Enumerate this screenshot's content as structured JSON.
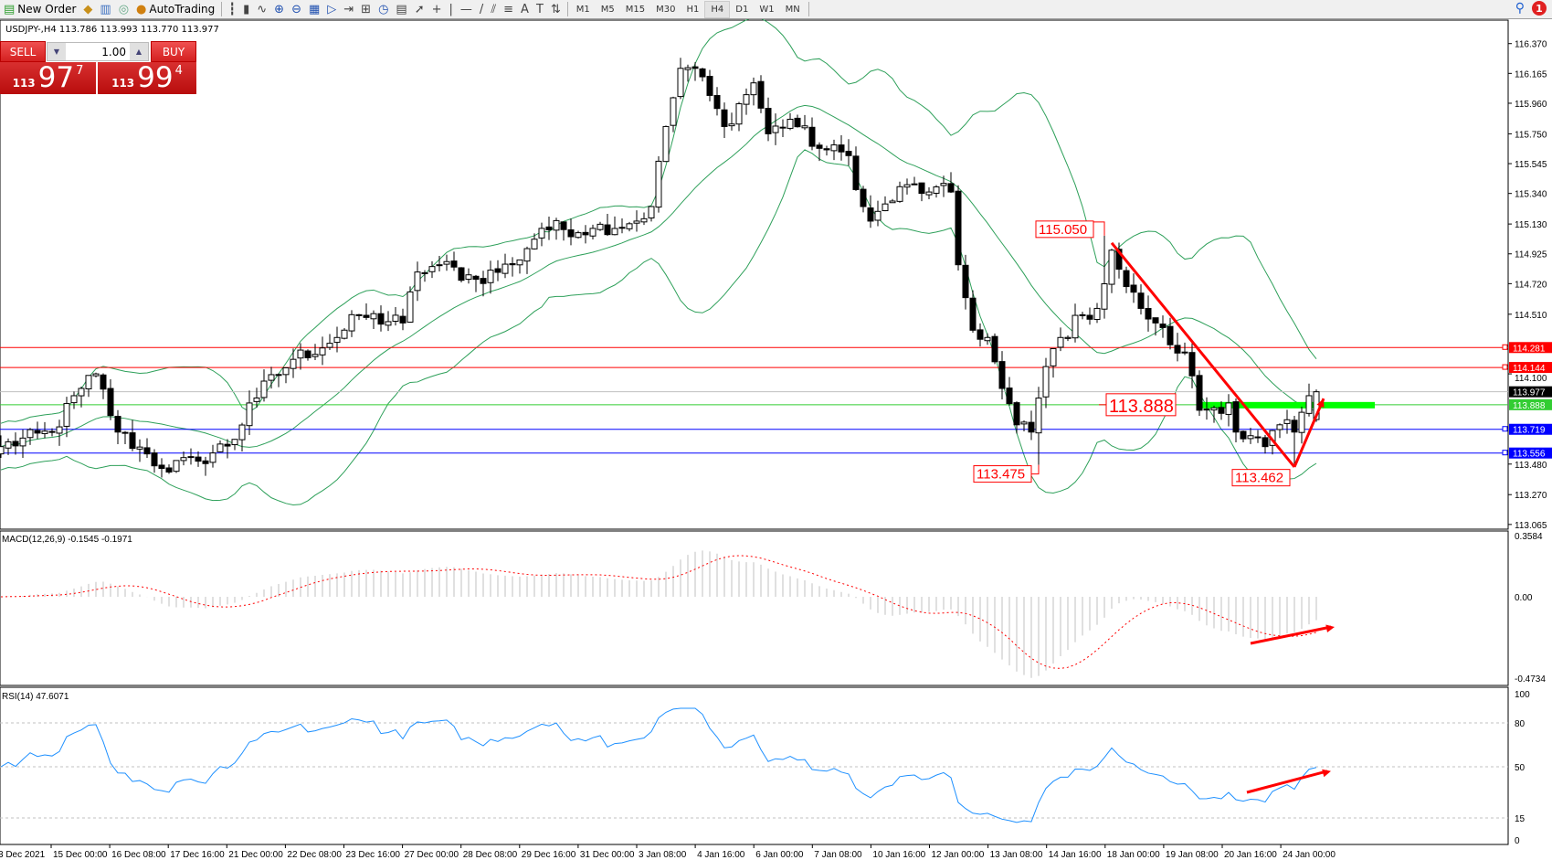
{
  "toolbar": {
    "items": [
      {
        "icon": "new-order-icon",
        "label": "New Order"
      },
      {
        "icon": "market-watch-icon",
        "label": ""
      },
      {
        "icon": "data-window-icon",
        "label": ""
      },
      {
        "icon": "signals-icon",
        "label": ""
      },
      {
        "icon": "autotrading-icon",
        "label": "AutoTrading"
      }
    ],
    "chart_tools": [
      "bar-chart-icon",
      "candlestick-icon",
      "line-chart-icon",
      "zoom-in-icon",
      "zoom-out-icon",
      "tile-windows-icon",
      "auto-scroll-icon",
      "chart-shift-icon",
      "indicators-icon",
      "periods-icon",
      "templates-icon",
      "cursor-icon",
      "crosshair-icon",
      "vertical-line-icon",
      "horizontal-line-icon",
      "trendline-icon",
      "equidistant-channel-icon",
      "fibonacci-icon",
      "text-icon",
      "text-label-icon",
      "arrows-icon"
    ],
    "timeframes": [
      "M1",
      "M5",
      "M15",
      "M30",
      "H1",
      "H4",
      "D1",
      "W1",
      "MN"
    ],
    "active_timeframe": "H4",
    "notification_count": "1"
  },
  "chart": {
    "header": "USDJPY-,H4  113.786 113.993 113.770 113.977",
    "symbol": "USDJPY-",
    "timeframe": "H4",
    "ohlc": {
      "open": 113.786,
      "high": 113.993,
      "low": 113.77,
      "close": 113.977
    }
  },
  "one_click": {
    "sell_label": "SELL",
    "buy_label": "BUY",
    "lot": "1.00",
    "sell_small": "113",
    "sell_big": "97",
    "sell_pip": "7",
    "buy_small": "113",
    "buy_big": "99",
    "buy_pip": "4"
  },
  "price_axis": {
    "ticks": [
      "116.370",
      "116.165",
      "115.960",
      "115.750",
      "115.545",
      "115.340",
      "115.130",
      "114.925",
      "114.720",
      "114.510",
      "114.100",
      "113.480",
      "113.270",
      "113.065"
    ]
  },
  "levels": [
    {
      "price": 114.281,
      "label": "114.281",
      "color": "#ff0000"
    },
    {
      "price": 114.144,
      "label": "114.144",
      "color": "#ff0000"
    },
    {
      "price": 113.977,
      "label": "113.977",
      "color": "#000000",
      "line": "#c0c0c0"
    },
    {
      "price": 113.888,
      "label": "113.888",
      "color": "#32cd32"
    },
    {
      "price": 113.719,
      "label": "113.719",
      "color": "#0000ff"
    },
    {
      "price": 113.556,
      "label": "113.556",
      "color": "#0000ff"
    }
  ],
  "annotations": [
    {
      "text": "115.050",
      "bar": 151,
      "price": 115.05,
      "size": "small"
    },
    {
      "text": "113.888",
      "bar": 150,
      "price": 113.888,
      "size": "large"
    },
    {
      "text": "113.475",
      "bar": 142,
      "price": 113.475,
      "size": "small"
    },
    {
      "text": "113.462",
      "bar": 177,
      "price": 113.462,
      "size": "small"
    }
  ],
  "trendline_points": [
    [
      152,
      115.0
    ],
    [
      177,
      113.46
    ],
    [
      181,
      113.93
    ]
  ],
  "support_zone": {
    "price": 113.888,
    "from_bar": 164,
    "to_bar": 188,
    "color": "#00ff00"
  },
  "close_anchors": [
    [
      0,
      113.6
    ],
    [
      7,
      113.7
    ],
    [
      11,
      114.0
    ],
    [
      13,
      114.1
    ],
    [
      16,
      113.7
    ],
    [
      20,
      113.55
    ],
    [
      22,
      113.45
    ],
    [
      27,
      113.5
    ],
    [
      32,
      113.65
    ],
    [
      34,
      113.9
    ],
    [
      40,
      114.2
    ],
    [
      46,
      114.35
    ],
    [
      49,
      114.5
    ],
    [
      55,
      114.45
    ],
    [
      57,
      114.8
    ],
    [
      60,
      114.85
    ],
    [
      65,
      114.75
    ],
    [
      70,
      114.85
    ],
    [
      74,
      115.1
    ],
    [
      81,
      115.1
    ],
    [
      87,
      115.15
    ],
    [
      89,
      115.25
    ],
    [
      91,
      115.8
    ],
    [
      93,
      116.2
    ],
    [
      95,
      116.2
    ],
    [
      99,
      115.8
    ],
    [
      103,
      116.1
    ],
    [
      105,
      115.75
    ],
    [
      108,
      115.85
    ],
    [
      112,
      115.65
    ],
    [
      116,
      115.6
    ],
    [
      118,
      115.25
    ],
    [
      119,
      115.15
    ],
    [
      124,
      115.4
    ],
    [
      127,
      115.35
    ],
    [
      130,
      115.35
    ],
    [
      131,
      114.85
    ],
    [
      133,
      114.4
    ],
    [
      135,
      114.35
    ],
    [
      137,
      114.0
    ],
    [
      139,
      113.75
    ],
    [
      141,
      113.7
    ],
    [
      143,
      114.15
    ],
    [
      145,
      114.35
    ],
    [
      148,
      114.5
    ],
    [
      150,
      114.55
    ],
    [
      152,
      114.95
    ],
    [
      154,
      114.7
    ],
    [
      156,
      114.55
    ],
    [
      158,
      114.45
    ],
    [
      160,
      114.3
    ],
    [
      162,
      114.25
    ],
    [
      164,
      113.85
    ],
    [
      168,
      113.9
    ],
    [
      169,
      113.7
    ],
    [
      173,
      113.6
    ],
    [
      175,
      113.75
    ],
    [
      177,
      113.7
    ],
    [
      179,
      113.95
    ],
    [
      180,
      113.977
    ]
  ],
  "bollinger": {
    "period": 20,
    "deviation": 2,
    "color": "#2ea05a"
  },
  "macd": {
    "label": "MACD(12,26,9) -0.1545 -0.1971",
    "max": "0.3584",
    "zero": "0.00",
    "min": "-0.4734",
    "arrow": [
      [
        171,
        -0.272
      ],
      [
        182.5,
        -0.176
      ]
    ]
  },
  "rsi": {
    "label": "RSI(14) 47.6071",
    "levels": [
      "100",
      "80",
      "50",
      "15",
      "0"
    ],
    "color": "#1e90ff",
    "arrow": [
      [
        170.5,
        32.5
      ],
      [
        182,
        47
      ]
    ]
  },
  "time_axis": [
    "3 Dec 2021",
    "15 Dec 00:00",
    "16 Dec 08:00",
    "17 Dec 16:00",
    "21 Dec 00:00",
    "22 Dec 08:00",
    "23 Dec 16:00",
    "27 Dec 00:00",
    "28 Dec 08:00",
    "29 Dec 16:00",
    "31 Dec 00:00",
    "3 Jan 08:00",
    "4 Jan 16:00",
    "6 Jan 00:00",
    "7 Jan 08:00",
    "10 Jan 16:00",
    "12 Jan 00:00",
    "13 Jan 08:00",
    "14 Jan 16:00",
    "18 Jan 00:00",
    "19 Jan 08:00",
    "20 Jan 16:00",
    "24 Jan 00:00"
  ]
}
